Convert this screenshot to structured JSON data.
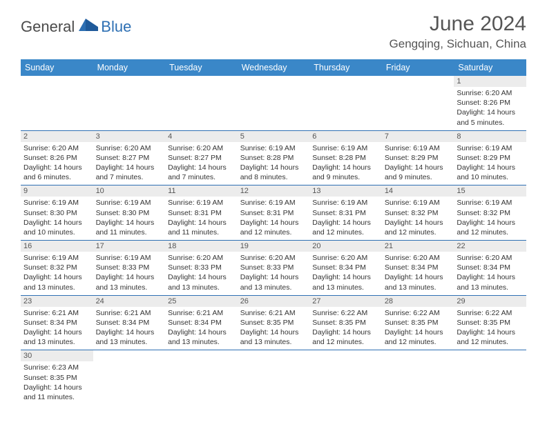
{
  "brand": {
    "part1": "General",
    "part2": "Blue"
  },
  "title": "June 2024",
  "location": "Gengqing, Sichuan, China",
  "header_bg": "#3a87c8",
  "weekdays": [
    "Sunday",
    "Monday",
    "Tuesday",
    "Wednesday",
    "Thursday",
    "Friday",
    "Saturday"
  ],
  "grid": [
    [
      null,
      null,
      null,
      null,
      null,
      null,
      {
        "d": "1",
        "sr": "6:20 AM",
        "ss": "8:26 PM",
        "dl": "14 hours and 5 minutes."
      }
    ],
    [
      {
        "d": "2",
        "sr": "6:20 AM",
        "ss": "8:26 PM",
        "dl": "14 hours and 6 minutes."
      },
      {
        "d": "3",
        "sr": "6:20 AM",
        "ss": "8:27 PM",
        "dl": "14 hours and 7 minutes."
      },
      {
        "d": "4",
        "sr": "6:20 AM",
        "ss": "8:27 PM",
        "dl": "14 hours and 7 minutes."
      },
      {
        "d": "5",
        "sr": "6:19 AM",
        "ss": "8:28 PM",
        "dl": "14 hours and 8 minutes."
      },
      {
        "d": "6",
        "sr": "6:19 AM",
        "ss": "8:28 PM",
        "dl": "14 hours and 9 minutes."
      },
      {
        "d": "7",
        "sr": "6:19 AM",
        "ss": "8:29 PM",
        "dl": "14 hours and 9 minutes."
      },
      {
        "d": "8",
        "sr": "6:19 AM",
        "ss": "8:29 PM",
        "dl": "14 hours and 10 minutes."
      }
    ],
    [
      {
        "d": "9",
        "sr": "6:19 AM",
        "ss": "8:30 PM",
        "dl": "14 hours and 10 minutes."
      },
      {
        "d": "10",
        "sr": "6:19 AM",
        "ss": "8:30 PM",
        "dl": "14 hours and 11 minutes."
      },
      {
        "d": "11",
        "sr": "6:19 AM",
        "ss": "8:31 PM",
        "dl": "14 hours and 11 minutes."
      },
      {
        "d": "12",
        "sr": "6:19 AM",
        "ss": "8:31 PM",
        "dl": "14 hours and 12 minutes."
      },
      {
        "d": "13",
        "sr": "6:19 AM",
        "ss": "8:31 PM",
        "dl": "14 hours and 12 minutes."
      },
      {
        "d": "14",
        "sr": "6:19 AM",
        "ss": "8:32 PM",
        "dl": "14 hours and 12 minutes."
      },
      {
        "d": "15",
        "sr": "6:19 AM",
        "ss": "8:32 PM",
        "dl": "14 hours and 12 minutes."
      }
    ],
    [
      {
        "d": "16",
        "sr": "6:19 AM",
        "ss": "8:32 PM",
        "dl": "14 hours and 13 minutes."
      },
      {
        "d": "17",
        "sr": "6:19 AM",
        "ss": "8:33 PM",
        "dl": "14 hours and 13 minutes."
      },
      {
        "d": "18",
        "sr": "6:20 AM",
        "ss": "8:33 PM",
        "dl": "14 hours and 13 minutes."
      },
      {
        "d": "19",
        "sr": "6:20 AM",
        "ss": "8:33 PM",
        "dl": "14 hours and 13 minutes."
      },
      {
        "d": "20",
        "sr": "6:20 AM",
        "ss": "8:34 PM",
        "dl": "14 hours and 13 minutes."
      },
      {
        "d": "21",
        "sr": "6:20 AM",
        "ss": "8:34 PM",
        "dl": "14 hours and 13 minutes."
      },
      {
        "d": "22",
        "sr": "6:20 AM",
        "ss": "8:34 PM",
        "dl": "14 hours and 13 minutes."
      }
    ],
    [
      {
        "d": "23",
        "sr": "6:21 AM",
        "ss": "8:34 PM",
        "dl": "14 hours and 13 minutes."
      },
      {
        "d": "24",
        "sr": "6:21 AM",
        "ss": "8:34 PM",
        "dl": "14 hours and 13 minutes."
      },
      {
        "d": "25",
        "sr": "6:21 AM",
        "ss": "8:34 PM",
        "dl": "14 hours and 13 minutes."
      },
      {
        "d": "26",
        "sr": "6:21 AM",
        "ss": "8:35 PM",
        "dl": "14 hours and 13 minutes."
      },
      {
        "d": "27",
        "sr": "6:22 AM",
        "ss": "8:35 PM",
        "dl": "14 hours and 12 minutes."
      },
      {
        "d": "28",
        "sr": "6:22 AM",
        "ss": "8:35 PM",
        "dl": "14 hours and 12 minutes."
      },
      {
        "d": "29",
        "sr": "6:22 AM",
        "ss": "8:35 PM",
        "dl": "14 hours and 12 minutes."
      }
    ],
    [
      {
        "d": "30",
        "sr": "6:23 AM",
        "ss": "8:35 PM",
        "dl": "14 hours and 11 minutes."
      },
      null,
      null,
      null,
      null,
      null,
      null
    ]
  ],
  "labels": {
    "sunrise": "Sunrise:",
    "sunset": "Sunset:",
    "daylight": "Daylight:"
  }
}
